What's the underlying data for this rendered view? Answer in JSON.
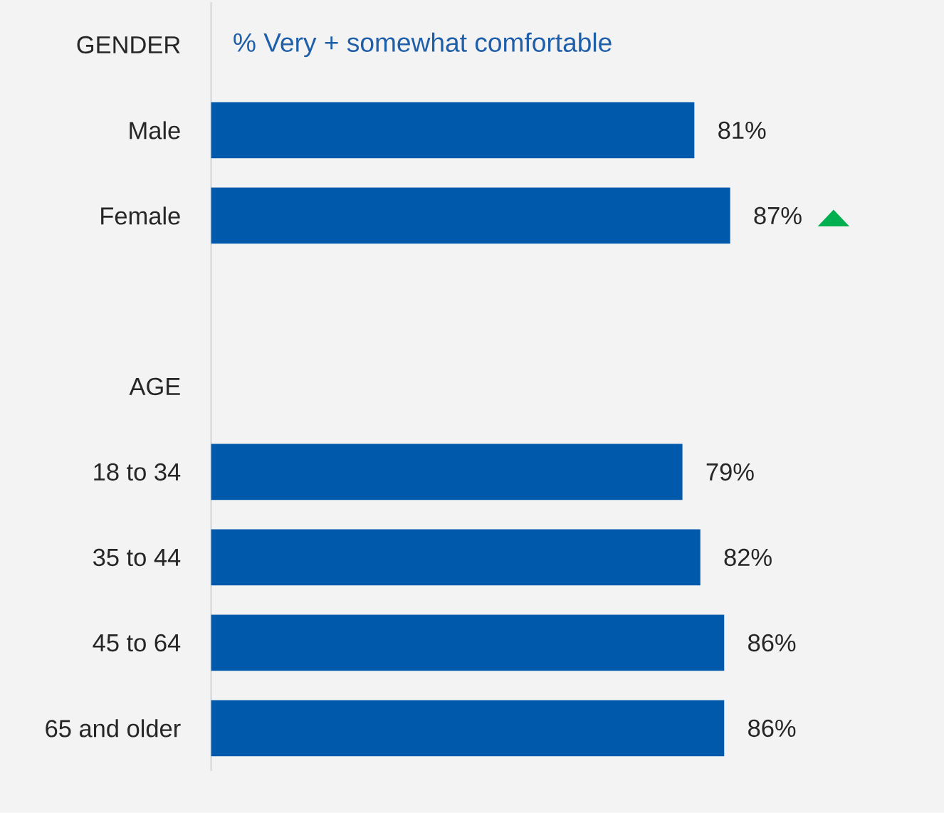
{
  "chart_data": {
    "type": "bar",
    "orientation": "horizontal",
    "subtitle": "% Very + somewhat comfortable",
    "categories": [
      "GENDER",
      "Male",
      "Female",
      null,
      "AGE",
      "18 to 34",
      "35 to 44",
      "45 to 64",
      "65 and older"
    ],
    "values": [
      null,
      81,
      87,
      null,
      null,
      79,
      82,
      86,
      86
    ],
    "value_labels": [
      null,
      "81%",
      "87%",
      null,
      null,
      "79%",
      "82%",
      "86%",
      "86%"
    ],
    "color": "#0059ab",
    "tick_labels": "y",
    "annotations": [
      "▲"
    ]
  }
}
